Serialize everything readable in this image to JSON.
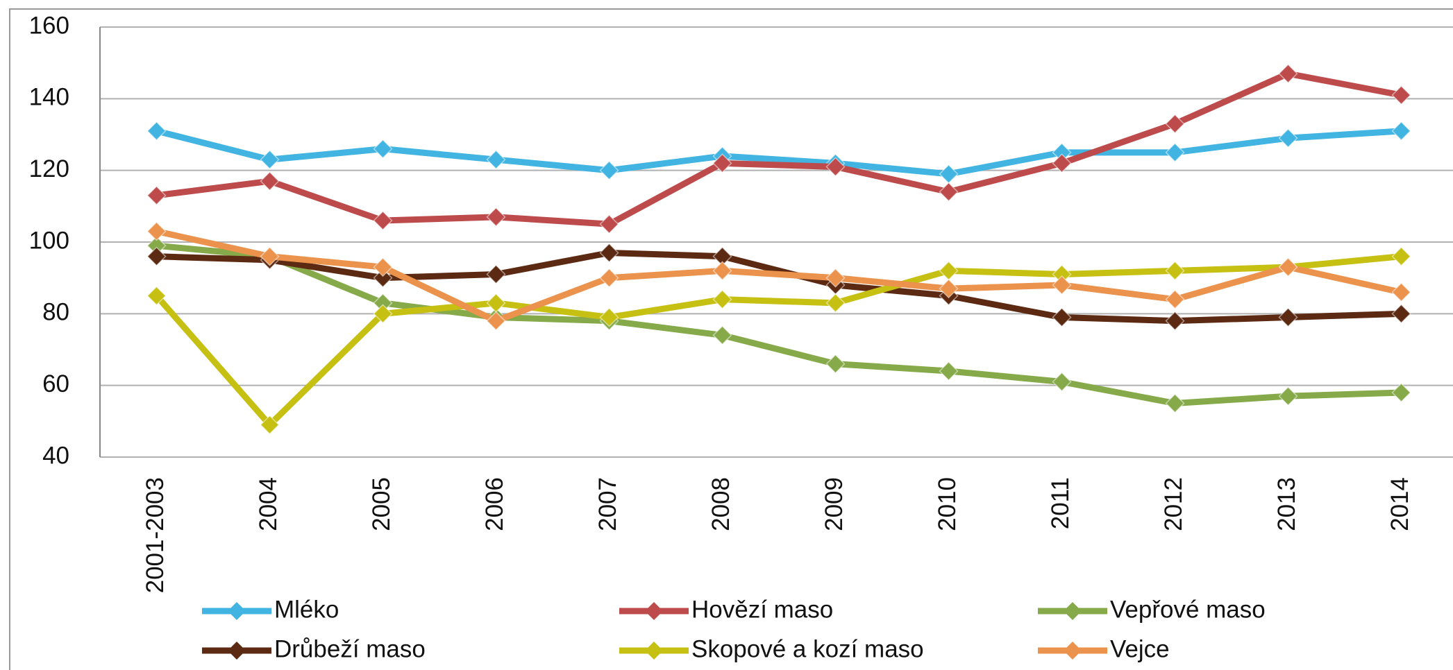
{
  "chart_data": {
    "type": "line",
    "categories": [
      "2001-2003",
      "2004",
      "2005",
      "2006",
      "2007",
      "2008",
      "2009",
      "2010",
      "2011",
      "2012",
      "2013",
      "2014"
    ],
    "series": [
      {
        "name": "Mléko",
        "color": "#41b4e2",
        "values": [
          131,
          123,
          126,
          123,
          120,
          124,
          122,
          119,
          125,
          125,
          129,
          131
        ]
      },
      {
        "name": "Hovězí maso",
        "color": "#bd4b4b",
        "values": [
          113,
          117,
          106,
          107,
          105,
          122,
          121,
          114,
          122,
          133,
          147,
          141
        ]
      },
      {
        "name": "Vepřové maso",
        "color": "#86aa4a",
        "values": [
          99,
          96,
          83,
          79,
          78,
          74,
          66,
          64,
          61,
          55,
          57,
          58
        ]
      },
      {
        "name": "Drůbeží maso",
        "color": "#5c2a12",
        "values": [
          96,
          95,
          90,
          91,
          97,
          96,
          88,
          85,
          79,
          78,
          79,
          80
        ]
      },
      {
        "name": "Skopové a kozí maso",
        "color": "#c6c012",
        "values": [
          85,
          49,
          80,
          83,
          79,
          84,
          83,
          92,
          91,
          92,
          93,
          96
        ]
      },
      {
        "name": "Vejce",
        "color": "#eb924c",
        "values": [
          103,
          96,
          93,
          78,
          90,
          92,
          90,
          87,
          88,
          84,
          93,
          86
        ]
      }
    ],
    "ylim": [
      40,
      160
    ],
    "yticks": [
      40,
      60,
      80,
      100,
      120,
      140,
      160
    ],
    "grid": true
  }
}
